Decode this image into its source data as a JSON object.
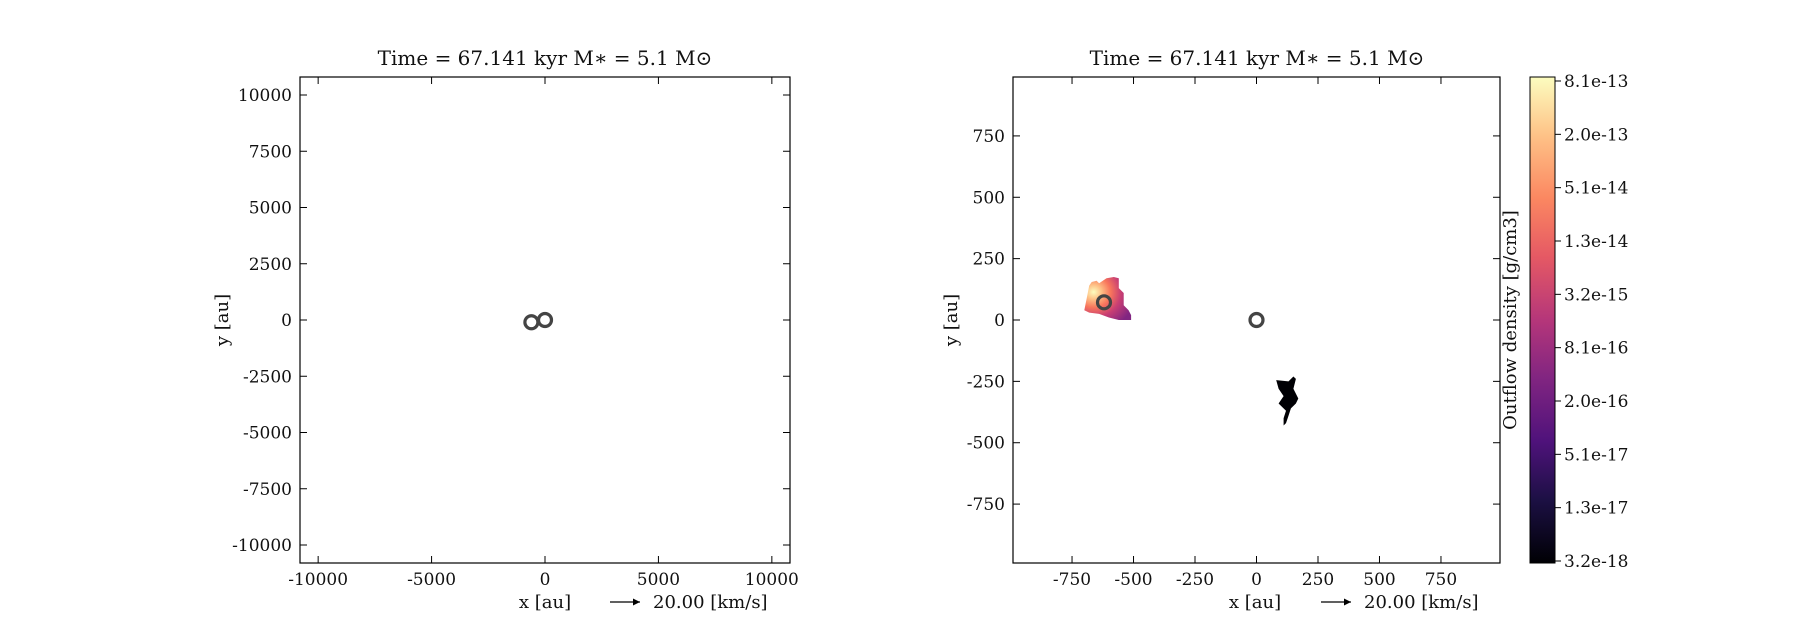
{
  "chart_data": [
    {
      "type": "scatter",
      "title": "Time = 67.141 kyr    M∗ = 5.1 M⊙",
      "xlabel": "x [au]",
      "ylabel": "y [au]",
      "xlim": [
        -10800,
        10800
      ],
      "ylim": [
        -10800,
        10800
      ],
      "xticks": [
        -10000,
        -5000,
        0,
        5000,
        10000
      ],
      "yticks": [
        10000,
        7500,
        5000,
        2500,
        0,
        -2500,
        -5000,
        -7500,
        -10000
      ],
      "vector_key": "20.00 [km/s]",
      "series": [
        {
          "x": [
            -600,
            0
          ],
          "y": [
            -100,
            0
          ],
          "marker": "ring",
          "color": "#444444"
        }
      ]
    },
    {
      "type": "heatmap",
      "title": "Time = 67.141 kyr    M∗ = 5.1 M⊙",
      "xlabel": "x [au]",
      "ylabel": "y [au]",
      "xlim": [
        -990,
        990
      ],
      "ylim": [
        -990,
        990
      ],
      "xticks": [
        -750,
        -500,
        -250,
        0,
        250,
        500,
        750
      ],
      "yticks": [
        750,
        500,
        250,
        0,
        -250,
        -500,
        -750
      ],
      "vector_key": "20.00 [km/s]",
      "colorbar": {
        "label": "Outflow density [g/cm3]",
        "colormap": "magma",
        "ticks": [
          "8.1e-13",
          "2.0e-13",
          "5.1e-14",
          "1.3e-14",
          "3.2e-15",
          "8.1e-16",
          "2.0e-16",
          "5.1e-17",
          "1.3e-17",
          "3.2e-18"
        ]
      },
      "regions": [
        {
          "name": "outflow-left",
          "x": [
            -680,
            -670,
            -650,
            -640,
            -610,
            -580,
            -560,
            -560,
            -540,
            -540,
            -520,
            -510,
            -510,
            -560,
            -600,
            -640,
            -680,
            -700,
            -690
          ],
          "y": [
            140,
            155,
            160,
            150,
            170,
            175,
            170,
            130,
            110,
            60,
            40,
            20,
            0,
            0,
            10,
            25,
            30,
            40,
            90
          ]
        },
        {
          "name": "outflow-right",
          "x": [
            80,
            130,
            150,
            160,
            150,
            170,
            160,
            140,
            130,
            120,
            110,
            110,
            120,
            90,
            110,
            90
          ],
          "y": [
            -245,
            -250,
            -230,
            -240,
            -280,
            -320,
            -340,
            -360,
            -390,
            -420,
            -430,
            -400,
            -370,
            -340,
            -310,
            -280
          ],
          "color": "#000004"
        }
      ],
      "series": [
        {
          "x": [
            -620,
            0
          ],
          "y": [
            72,
            0
          ],
          "marker": "ring",
          "color": "#444444"
        }
      ]
    }
  ]
}
